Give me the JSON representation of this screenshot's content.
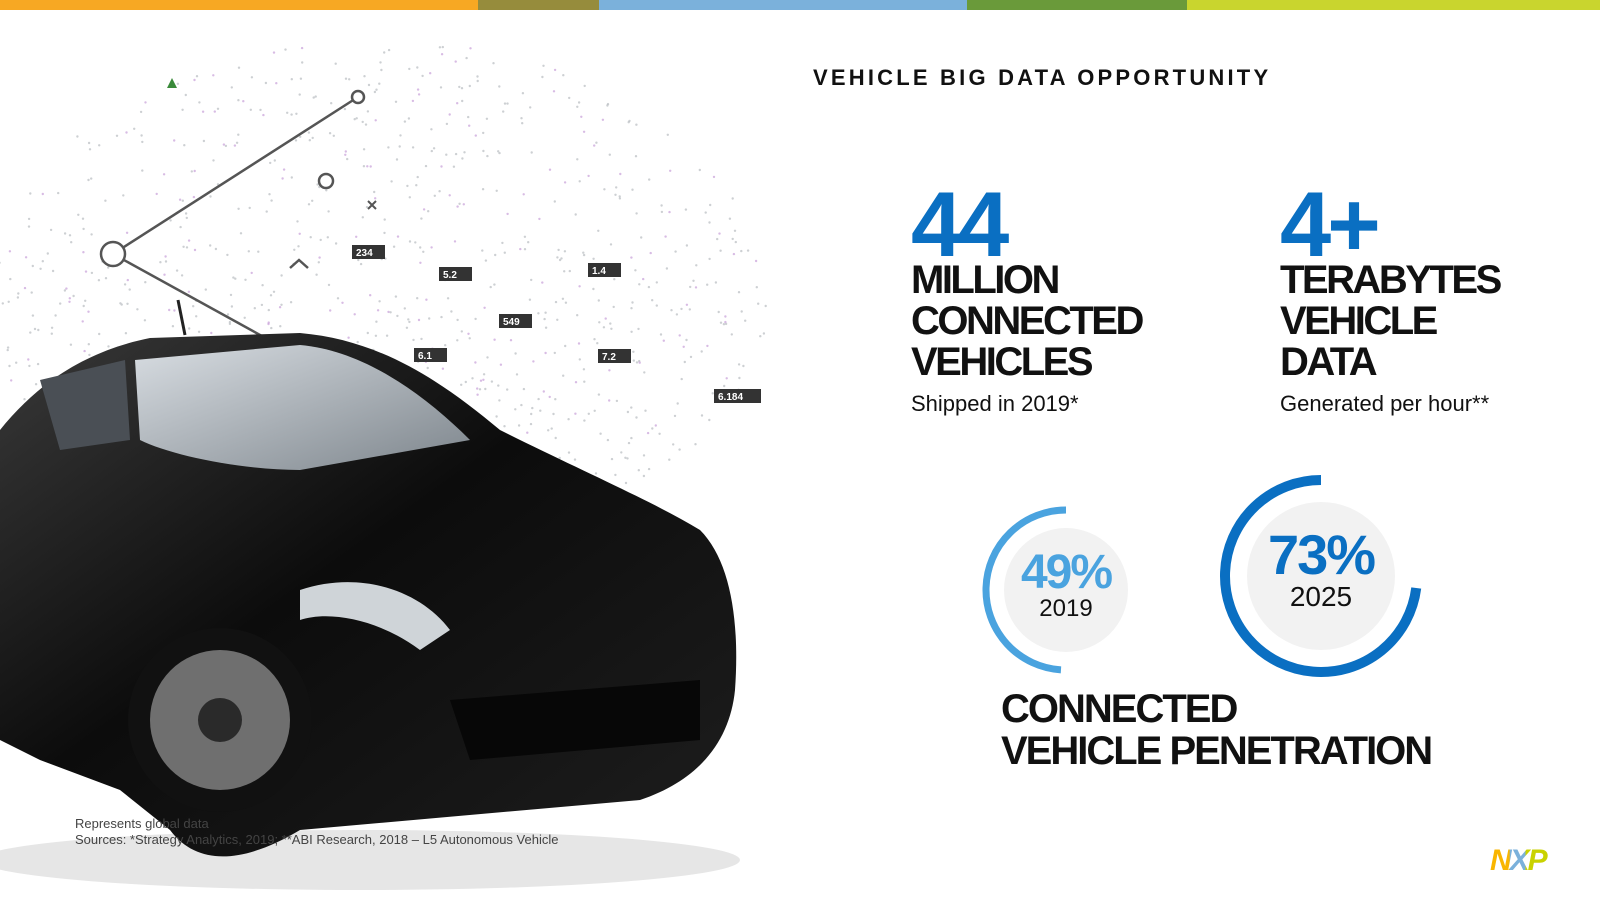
{
  "header": {
    "title": "VEHICLE BIG DATA OPPORTUNITY"
  },
  "stats": [
    {
      "number": "44",
      "lines": [
        "MILLION",
        "CONNECTED",
        "VEHICLES"
      ],
      "note": "Shipped in 2019*"
    },
    {
      "number": "4+",
      "lines": [
        "TERABYTES",
        "VEHICLE",
        "DATA"
      ],
      "note": "Generated per hour**"
    }
  ],
  "gauges": [
    {
      "value": 49,
      "label": "49%",
      "year": "2019",
      "color": "#4aa3df"
    },
    {
      "value": 73,
      "label": "73%",
      "year": "2025",
      "color": "#0a6fc2"
    }
  ],
  "penetration_title": [
    "CONNECTED",
    "VEHICLE PENETRATION"
  ],
  "image_labels": [
    "234",
    "5.2",
    "1.4",
    "549",
    "6.1",
    "7.2",
    "6.184"
  ],
  "footnotes": [
    "Represents global data",
    "Sources:  *Strategy Analytics, 2019; **ABI Research, 2018 – L5 Autonomous Vehicle"
  ],
  "logo": "NXP"
}
